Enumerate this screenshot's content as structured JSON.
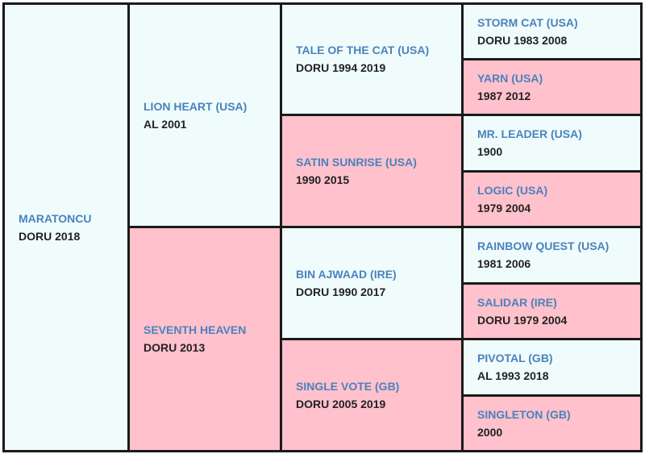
{
  "subject": {
    "name": "MARATONCU",
    "info": "DORU 2018"
  },
  "sire": {
    "name": "LION HEART (USA)",
    "info": "AL 2001"
  },
  "dam": {
    "name": "SEVENTH HEAVEN",
    "info": "DORU 2013"
  },
  "gen3": [
    {
      "name": "TALE OF THE CAT (USA)",
      "info": "DORU 1994 2019"
    },
    {
      "name": "SATIN SUNRISE (USA)",
      "info": "1990 2015"
    },
    {
      "name": "BIN AJWAAD (IRE)",
      "info": "DORU 1990 2017"
    },
    {
      "name": "SINGLE VOTE (GB)",
      "info": "DORU 2005 2019"
    }
  ],
  "gen4": [
    {
      "name": "STORM CAT (USA)",
      "info": "DORU 1983 2008"
    },
    {
      "name": "YARN (USA)",
      "info": "1987 2012"
    },
    {
      "name": "MR. LEADER (USA)",
      "info": "1900"
    },
    {
      "name": "LOGIC (USA)",
      "info": "1979 2004"
    },
    {
      "name": "RAINBOW QUEST (USA)",
      "info": "1981 2006"
    },
    {
      "name": "SALIDAR (IRE)",
      "info": "DORU 1979 2004"
    },
    {
      "name": "PIVOTAL (GB)",
      "info": "AL 1993 2018"
    },
    {
      "name": "SINGLETON (GB)",
      "info": "2000"
    }
  ],
  "colors": {
    "male_bg": "#f0fcfc",
    "female_bg": "#ffc1cc",
    "name_text": "#4a82bd",
    "border": "#1a1a1a"
  }
}
